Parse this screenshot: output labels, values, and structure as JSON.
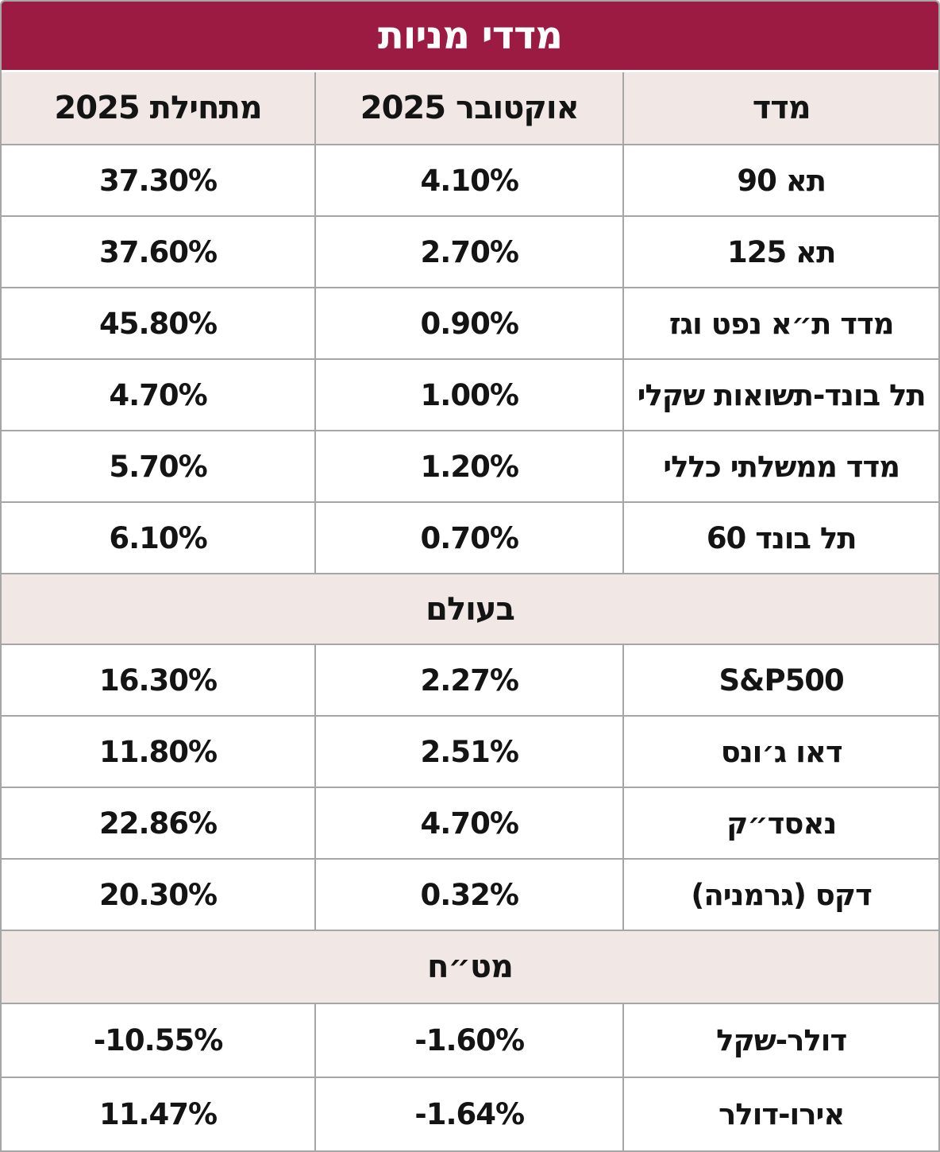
{
  "title": "מדדי מניות",
  "colors": {
    "title_bg": "#9b1b42",
    "header_bg": "#f1e8e5",
    "border": "#a6a6a6",
    "title_text": "#ffffff",
    "body_text": "#141414"
  },
  "columns": {
    "index": "מדד",
    "october": "אוקטובר 2025",
    "ytd": "מתחילת 2025"
  },
  "local_rows": [
    {
      "index": "תא 90",
      "october": "4.10%",
      "ytd": "37.30%"
    },
    {
      "index": "תא 125",
      "october": "2.70%",
      "ytd": "37.60%"
    },
    {
      "index": "מדד ת״א נפט וגז",
      "october": "0.90%",
      "ytd": "45.80%"
    },
    {
      "index": "תל בונד-תשואות שקלי",
      "october": "1.00%",
      "ytd": "4.70%"
    },
    {
      "index": "מדד ממשלתי כללי",
      "october": "1.20%",
      "ytd": "5.70%"
    },
    {
      "index": "תל בונד 60",
      "october": "0.70%",
      "ytd": "6.10%"
    }
  ],
  "world_section_label": "בעולם",
  "world_rows": [
    {
      "index": "S&P500",
      "october": "2.27%",
      "ytd": "16.30%"
    },
    {
      "index": "דאו ג׳ונס",
      "october": "2.51%",
      "ytd": "11.80%"
    },
    {
      "index": "נאסד״ק",
      "october": "4.70%",
      "ytd": "22.86%"
    },
    {
      "index": "דקס (גרמניה)",
      "october": "0.32%",
      "ytd": "20.30%"
    }
  ],
  "fx_section_label": "מט״ח",
  "fx_rows": [
    {
      "index": "דולר-שקל",
      "october": "-1.60%",
      "ytd": "-10.55%"
    },
    {
      "index": "אירו-דולר",
      "october": "-1.64%",
      "ytd": "11.47%"
    }
  ],
  "chart_data": {
    "type": "table",
    "title": "מדדי מניות",
    "columns": [
      "מדד",
      "אוקטובר 2025",
      "מתחילת 2025"
    ],
    "sections": [
      {
        "name": "",
        "rows": [
          [
            "תא 90",
            "4.10%",
            "37.30%"
          ],
          [
            "תא 125",
            "2.70%",
            "37.60%"
          ],
          [
            "מדד ת״א נפט וגז",
            "0.90%",
            "45.80%"
          ],
          [
            "תל בונד-תשואות שקלי",
            "1.00%",
            "4.70%"
          ],
          [
            "מדד ממשלתי כללי",
            "1.20%",
            "5.70%"
          ],
          [
            "תל בונד 60",
            "0.70%",
            "6.10%"
          ]
        ]
      },
      {
        "name": "בעולם",
        "rows": [
          [
            "S&P500",
            "2.27%",
            "16.30%"
          ],
          [
            "דאו ג׳ונס",
            "2.51%",
            "11.80%"
          ],
          [
            "נאסד״ק",
            "4.70%",
            "22.86%"
          ],
          [
            "דקס (גרמניה)",
            "0.32%",
            "20.30%"
          ]
        ]
      },
      {
        "name": "מט״ח",
        "rows": [
          [
            "דולר-שקל",
            "-1.60%",
            "-10.55%"
          ],
          [
            "אירו-דולר",
            "-1.64%",
            "11.47%"
          ]
        ]
      }
    ]
  }
}
